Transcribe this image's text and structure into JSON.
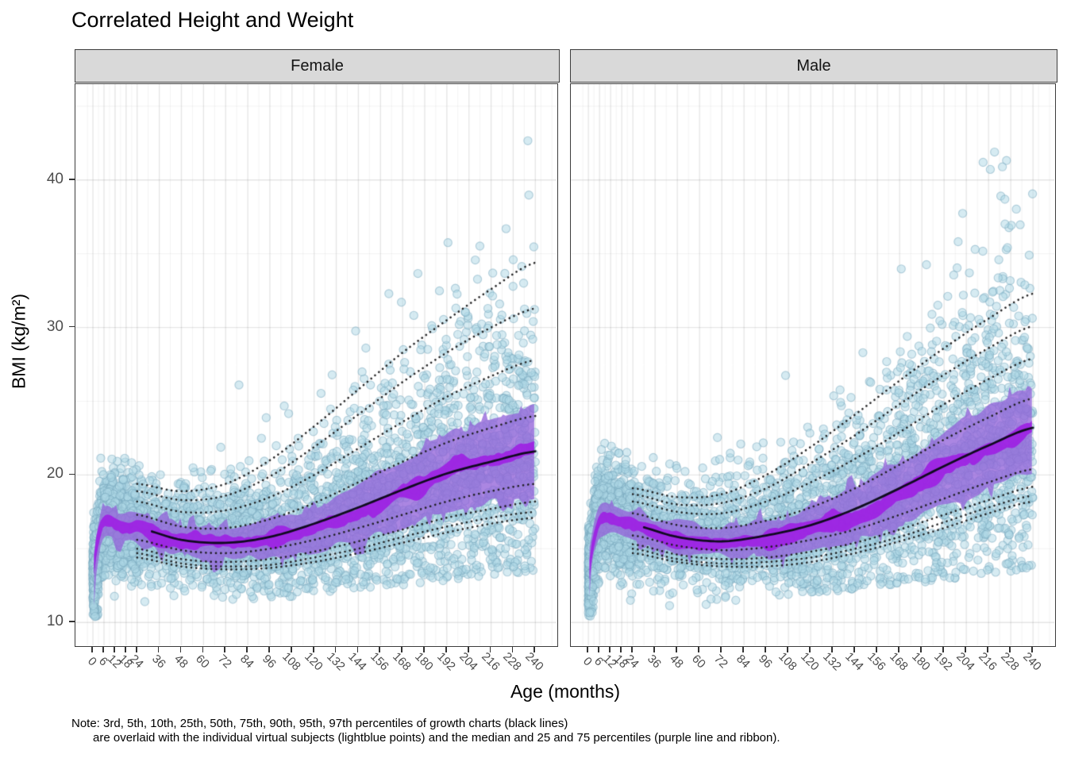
{
  "title": "Correlated Height and Weight",
  "axes": {
    "x_label": "Age (months)",
    "y_label": "BMI (kg/m²)"
  },
  "note": {
    "line1": "Note: 3rd, 5th, 10th, 25th, 50th, 75th, 90th, 95th, 97th percentiles of growth charts (black lines)",
    "line2": "are overlaid with the individual virtual subjects (lightblue points) and the median and 25 and 75 percentiles (purple line and ribbon)."
  },
  "colors": {
    "point_fill": "rgba(173,216,230,0.50)",
    "point_stroke": "rgba(120,168,190,0.50)",
    "ribbon_outer": "rgba(148,100,218,0.78)",
    "ribbon_inner": "rgba(158,28,228,0.88)",
    "growth_median_line": "rgba(10,8,22,0.95)",
    "growth_dotted": "rgba(28,28,30,0.95)",
    "grid_major": "rgba(0,0,0,0.10)",
    "grid_minor": "rgba(0,0,0,0.055)",
    "strip_bg": "#d9d9d9",
    "strip_border": "#3c3c3c",
    "panel_border": "#3c3c3c",
    "tick_label": "#4d4d4d"
  },
  "chart_data": {
    "type": "scatter",
    "title": "Correlated Height and Weight",
    "xlabel": "Age (months)",
    "ylabel": "BMI (kg/m²)",
    "facets": [
      {
        "label": "Female"
      },
      {
        "label": "Male"
      }
    ],
    "x_breaks": [
      0,
      6,
      12,
      18,
      24,
      36,
      48,
      60,
      72,
      84,
      96,
      108,
      120,
      132,
      144,
      156,
      168,
      180,
      192,
      204,
      216,
      228,
      240
    ],
    "y_breaks": [
      10,
      20,
      30,
      40
    ],
    "y_minor_breaks": [
      15,
      25,
      35,
      45
    ],
    "x_range": [
      -9.5,
      251.5
    ],
    "y_range": [
      8.45,
      46.5
    ],
    "grid": true,
    "growth_percentile_labels": [
      "3rd",
      "5th",
      "10th",
      "25th",
      "50th",
      "75th",
      "90th",
      "95th",
      "97th"
    ],
    "growth_months": [
      24,
      48,
      72,
      96,
      120,
      144,
      168,
      192,
      216,
      240
    ],
    "facet_data": {
      "female": {
        "growth": {
          "p3": [
            14.4,
            13.8,
            13.6,
            13.7,
            14.1,
            14.7,
            15.4,
            16.1,
            16.7,
            17.1
          ],
          "p5": [
            14.7,
            14.0,
            13.8,
            13.9,
            14.4,
            15.0,
            15.8,
            16.5,
            17.1,
            17.5
          ],
          "p10": [
            15.0,
            14.3,
            14.1,
            14.3,
            14.8,
            15.5,
            16.3,
            17.1,
            17.7,
            18.2
          ],
          "p25": [
            15.6,
            14.9,
            14.7,
            15.0,
            15.6,
            16.4,
            17.3,
            18.2,
            18.9,
            19.4
          ],
          "p50": [
            16.4,
            15.6,
            15.4,
            15.8,
            16.7,
            17.8,
            19.0,
            20.1,
            20.9,
            21.6
          ],
          "p75": [
            17.3,
            16.5,
            16.4,
            17.0,
            18.1,
            19.5,
            20.9,
            22.2,
            23.2,
            24.0
          ],
          "p90": [
            18.2,
            17.5,
            17.6,
            18.5,
            20.0,
            21.8,
            23.6,
            25.3,
            26.7,
            27.8
          ],
          "p95": [
            18.9,
            18.3,
            18.6,
            19.9,
            21.9,
            24.1,
            26.3,
            28.3,
            30.0,
            31.3
          ],
          "p97": [
            19.4,
            18.9,
            19.4,
            21.0,
            23.3,
            25.8,
            28.3,
            30.5,
            32.6,
            34.4
          ]
        },
        "subject_months": [
          0,
          2,
          4,
          6,
          9,
          12,
          18,
          24,
          36,
          48,
          60,
          72,
          84,
          96,
          108,
          120,
          132,
          144,
          156,
          168,
          180,
          192,
          204,
          216,
          228,
          240
        ],
        "subject_median": [
          13.2,
          15.0,
          16.1,
          16.8,
          16.9,
          16.7,
          16.45,
          16.3,
          15.95,
          15.65,
          15.45,
          15.4,
          15.5,
          15.7,
          16.0,
          16.4,
          16.9,
          17.5,
          18.15,
          18.8,
          19.45,
          20.05,
          20.6,
          21.0,
          21.35,
          21.6
        ],
        "subject_iqr_half": [
          0.7,
          0.85,
          0.95,
          1.0,
          1.0,
          1.0,
          1.0,
          1.0,
          1.0,
          1.0,
          1.05,
          1.1,
          1.15,
          1.25,
          1.4,
          1.55,
          1.7,
          1.9,
          2.1,
          2.3,
          2.45,
          2.6,
          2.7,
          2.8,
          2.9,
          3.0
        ],
        "n_points": 4600,
        "seed": 11,
        "bmi_max": 46.2,
        "solid_line_start_month": 32
      },
      "male": {
        "growth": {
          "p3": [
            14.7,
            14.1,
            13.8,
            13.8,
            14.1,
            14.7,
            15.5,
            16.4,
            17.4,
            18.2
          ],
          "p5": [
            15.0,
            14.3,
            14.0,
            14.1,
            14.4,
            15.0,
            15.8,
            16.8,
            17.8,
            18.6
          ],
          "p10": [
            15.3,
            14.6,
            14.3,
            14.4,
            14.8,
            15.4,
            16.3,
            17.3,
            18.3,
            19.2
          ],
          "p25": [
            15.9,
            15.2,
            14.9,
            15.1,
            15.6,
            16.3,
            17.3,
            18.4,
            19.5,
            20.4
          ],
          "p50": [
            16.6,
            15.8,
            15.5,
            15.9,
            16.6,
            17.7,
            19.1,
            20.6,
            22.0,
            23.2
          ],
          "p75": [
            17.4,
            16.6,
            16.4,
            16.9,
            17.8,
            19.1,
            20.7,
            22.4,
            23.9,
            25.2
          ],
          "p90": [
            18.2,
            17.5,
            17.4,
            18.2,
            19.5,
            21.1,
            22.9,
            24.8,
            26.5,
            27.9
          ],
          "p95": [
            18.7,
            18.0,
            18.1,
            19.1,
            20.8,
            22.7,
            24.8,
            26.8,
            28.6,
            30.1
          ],
          "p97": [
            19.1,
            18.5,
            18.7,
            20.0,
            21.9,
            24.1,
            26.4,
            28.6,
            30.6,
            32.3
          ]
        },
        "subject_months": [
          0,
          2,
          4,
          6,
          9,
          12,
          18,
          24,
          36,
          48,
          60,
          72,
          84,
          96,
          108,
          120,
          132,
          144,
          156,
          168,
          180,
          192,
          204,
          216,
          228,
          240
        ],
        "subject_median": [
          13.4,
          15.2,
          16.3,
          17.0,
          17.15,
          17.0,
          16.75,
          16.5,
          16.1,
          15.8,
          15.6,
          15.5,
          15.55,
          15.7,
          15.95,
          16.3,
          16.75,
          17.35,
          18.0,
          18.75,
          19.55,
          20.35,
          21.15,
          21.9,
          22.55,
          23.1
        ],
        "subject_iqr_half": [
          0.7,
          0.85,
          0.95,
          1.0,
          1.05,
          1.05,
          1.05,
          1.05,
          1.0,
          1.0,
          1.0,
          1.05,
          1.1,
          1.2,
          1.3,
          1.45,
          1.6,
          1.75,
          1.95,
          2.15,
          2.35,
          2.55,
          2.7,
          2.8,
          2.9,
          3.0
        ],
        "n_points": 4600,
        "seed": 23,
        "bmi_max": 42.2,
        "solid_line_start_month": 30
      }
    }
  }
}
